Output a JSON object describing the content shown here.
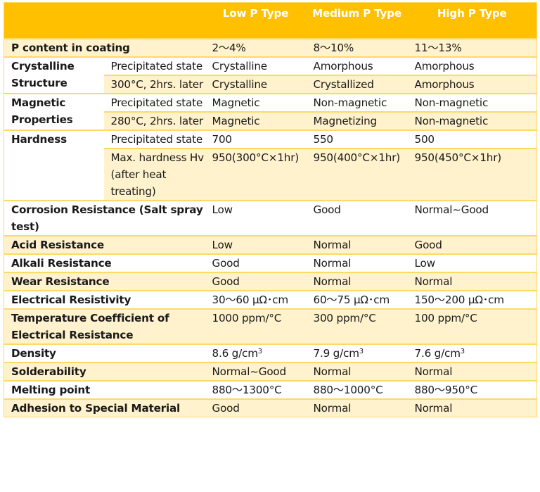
{
  "header": {
    "col0": "",
    "col1": "",
    "low": "Low P Type",
    "medium": "Medium P Type",
    "high": "High P Type"
  },
  "colors": {
    "header_bg": "#ffc000",
    "header_text": "#ffffff",
    "band_bg": "#fff2cc",
    "border": "#ffd966"
  },
  "rows": {
    "p_content": {
      "label": "P content in coating",
      "low": "2～4%",
      "medium": "8～10%",
      "high": "11～13%"
    },
    "crystalline": {
      "label": "Crystalline Structure",
      "sub": [
        {
          "condition": "Precipitated state",
          "low": "Crystalline",
          "medium": "Amorphous",
          "high": "Amorphous"
        },
        {
          "condition": "300°C, 2hrs. later",
          "low": "Crystalline",
          "medium": "Crystallized",
          "high": "Amorphous"
        }
      ]
    },
    "magnetic": {
      "label": "Magnetic Properties",
      "sub": [
        {
          "condition": "Precipitated state",
          "low": "Magnetic",
          "medium": "Non-magnetic",
          "high": "Non-magnetic"
        },
        {
          "condition": "280°C, 2hrs. later",
          "low": "Magnetic",
          "medium": "Magnetizing",
          "high": "Non-magnetic"
        }
      ]
    },
    "hardness": {
      "label": "Hardness",
      "sub": [
        {
          "condition": "Precipitated state",
          "low": "700",
          "medium": "550",
          "high": "500"
        },
        {
          "condition": "Max. hardness Hv (after heat treating)",
          "low": "950(300°C×1hr)",
          "medium": "950(400°C×1hr)",
          "high": "950(450°C×1hr)"
        }
      ]
    },
    "corrosion": {
      "label": "Corrosion Resistance (Salt spray test)",
      "low": "Low",
      "medium": "Good",
      "high": "Normal~Good"
    },
    "acid": {
      "label": "Acid Resistance",
      "low": "Low",
      "medium": "Normal",
      "high": "Good"
    },
    "alkali": {
      "label": "Alkali Resistance",
      "low": "Good",
      "medium": "Normal",
      "high": "Low"
    },
    "wear": {
      "label": "Wear Resistance",
      "low": "Good",
      "medium": "Normal",
      "high": "Normal"
    },
    "resistivity": {
      "label": "Electrical Resistivity",
      "low": "30～60 μΩ･cm",
      "medium": "60～75 μΩ･cm",
      "high": "150～200 μΩ･cm"
    },
    "temp_coeff": {
      "label": "Temperature Coefficient of Electrical Resistance",
      "low": "1000 ppm/°C",
      "medium": "300 ppm/°C",
      "high": "100 ppm/°C"
    },
    "density": {
      "label": "Density",
      "low": "8.6 g/cm",
      "medium": "7.9 g/cm",
      "high": "7.6 g/cm",
      "unit_sup": "3"
    },
    "solderability": {
      "label": "Solderability",
      "low": "Normal~Good",
      "medium": "Normal",
      "high": "Normal"
    },
    "melting": {
      "label": "Melting point",
      "low": "880～1300°C",
      "medium": "880～1000°C",
      "high": "880～950°C"
    },
    "adhesion": {
      "label": "Adhesion to Special Material",
      "low": "Good",
      "medium": "Normal",
      "high": "Normal"
    }
  }
}
